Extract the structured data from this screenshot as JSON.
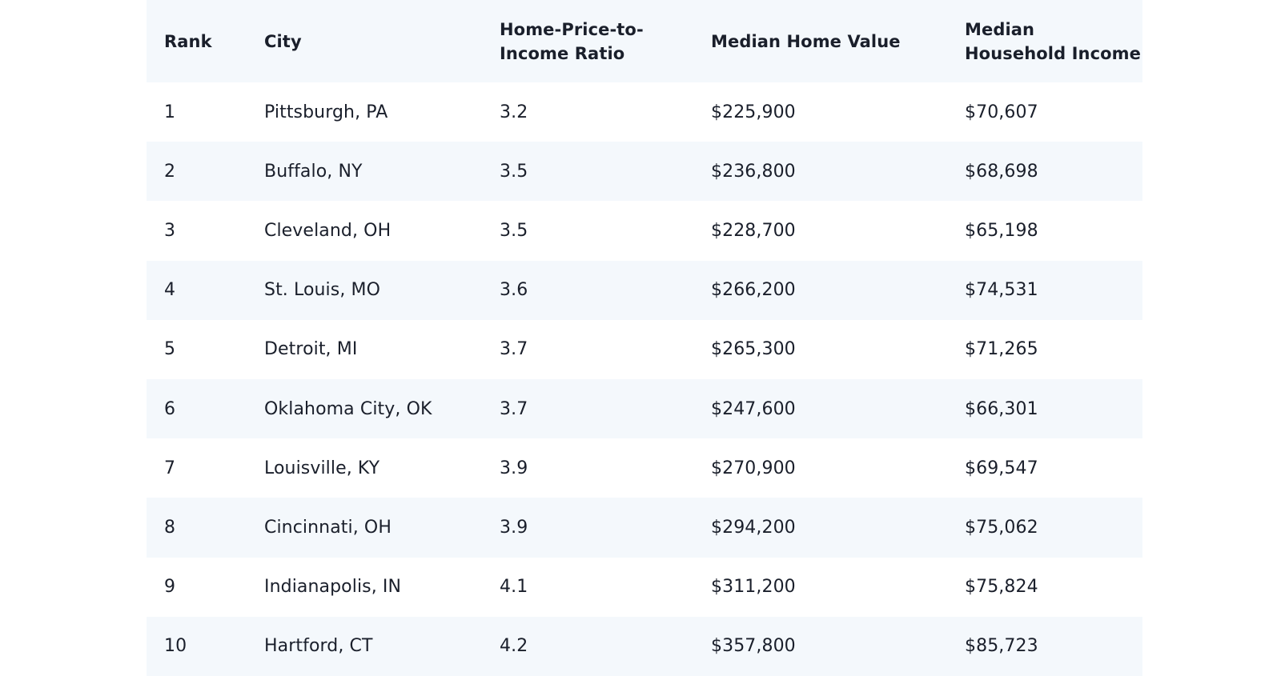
{
  "table": {
    "headers": [
      "Rank",
      "City",
      "Home-Price-to-Income Ratio",
      "Median Home Value",
      "Median Household Income"
    ],
    "rows": [
      {
        "rank": "1",
        "city": "Pittsburgh, PA",
        "ratio": "3.2",
        "value": "$225,900",
        "income": "$70,607"
      },
      {
        "rank": "2",
        "city": "Buffalo, NY",
        "ratio": "3.5",
        "value": "$236,800",
        "income": "$68,698"
      },
      {
        "rank": "3",
        "city": "Cleveland, OH",
        "ratio": "3.5",
        "value": "$228,700",
        "income": "$65,198"
      },
      {
        "rank": "4",
        "city": "St. Louis, MO",
        "ratio": "3.6",
        "value": "$266,200",
        "income": "$74,531"
      },
      {
        "rank": "5",
        "city": "Detroit, MI",
        "ratio": "3.7",
        "value": "$265,300",
        "income": "$71,265"
      },
      {
        "rank": "6",
        "city": "Oklahoma City, OK",
        "ratio": "3.7",
        "value": "$247,600",
        "income": "$66,301"
      },
      {
        "rank": "7",
        "city": "Louisville, KY",
        "ratio": "3.9",
        "value": "$270,900",
        "income": "$69,547"
      },
      {
        "rank": "8",
        "city": "Cincinnati, OH",
        "ratio": "3.9",
        "value": "$294,200",
        "income": "$75,062"
      },
      {
        "rank": "9",
        "city": "Indianapolis, IN",
        "ratio": "4.1",
        "value": "$311,200",
        "income": "$75,824"
      },
      {
        "rank": "10",
        "city": "Hartford, CT",
        "ratio": "4.2",
        "value": "$357,800",
        "income": "$85,723"
      }
    ]
  },
  "colors": {
    "header_bg": "#f4f8fc",
    "stripe_bg": "#f4f8fc",
    "text": "#1a1f2b"
  }
}
